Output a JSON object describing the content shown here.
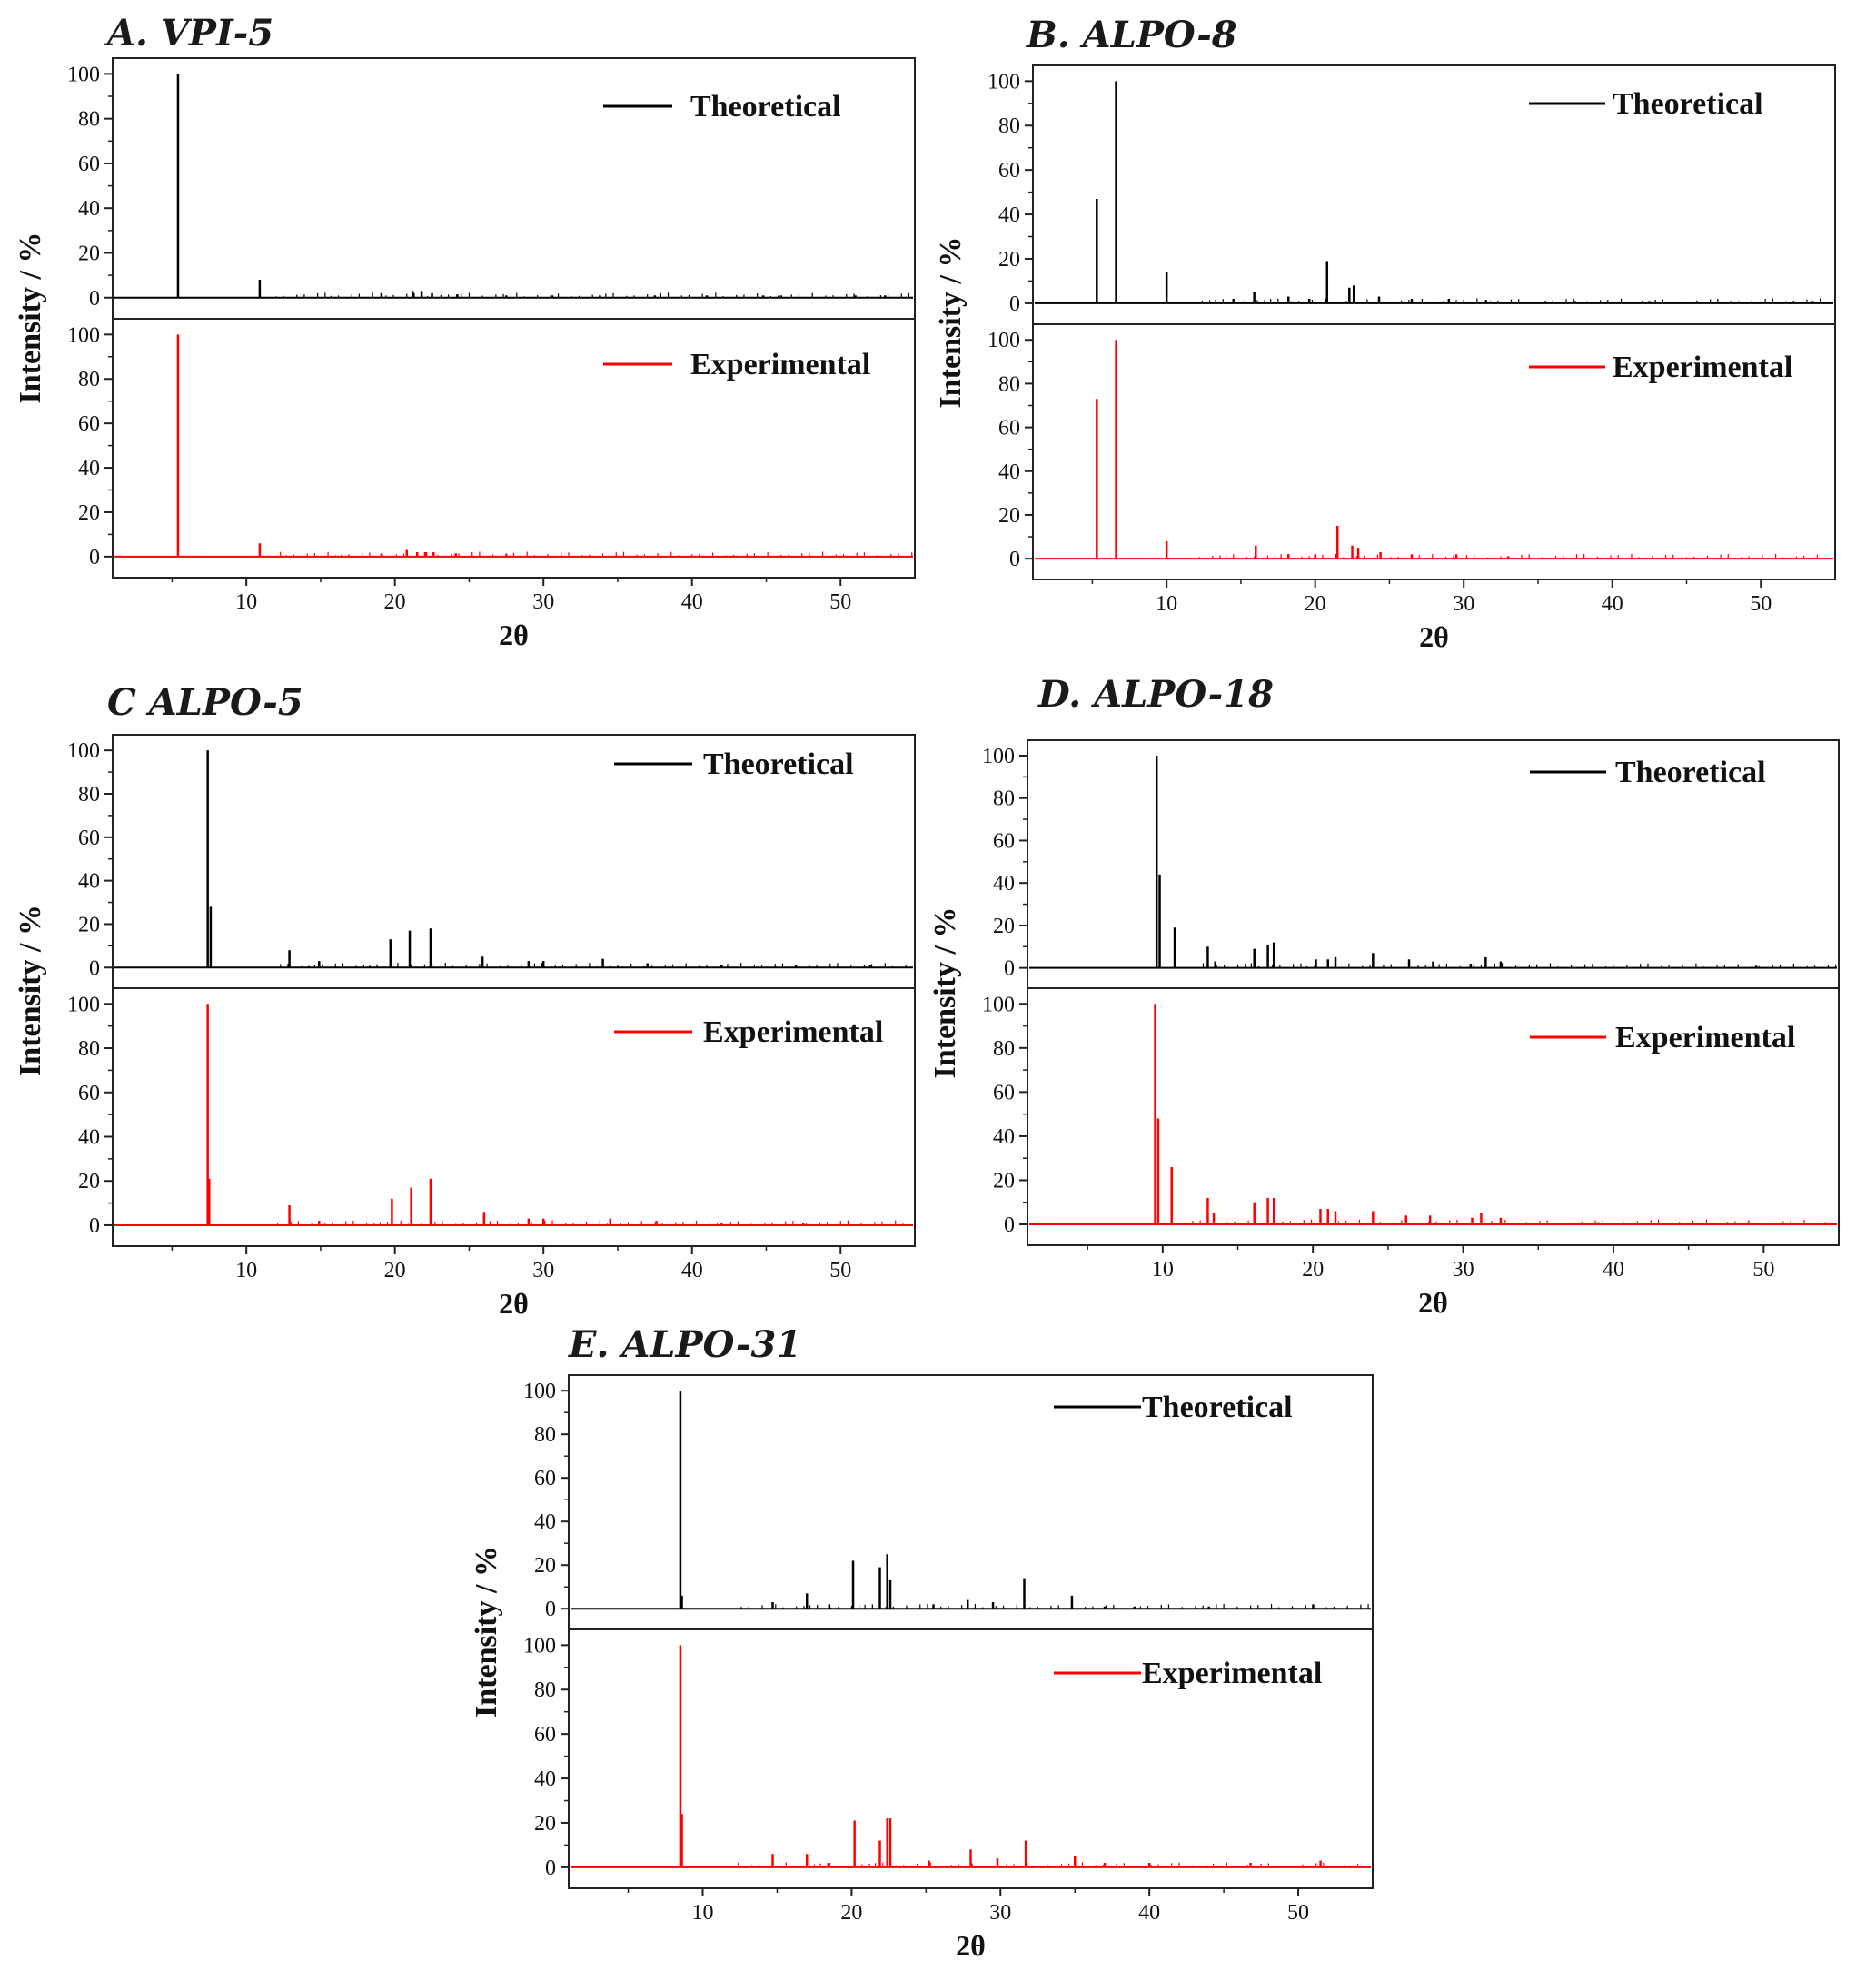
{
  "chart_data": [
    {
      "panel_title": "A. VPI-5",
      "type": "line",
      "xlabel": "2θ",
      "ylabel": "Intensity / %",
      "xlim": [
        1,
        55
      ],
      "ylim": [
        -7,
        103
      ],
      "x_ticks": [
        10,
        20,
        30,
        40,
        50
      ],
      "y_ticks": [
        0,
        20,
        40,
        60,
        80,
        100
      ],
      "series": [
        {
          "name": "Theoretical",
          "color": "#000000",
          "x": [
            5.4,
            10.9,
            19.1,
            21.2,
            21.8,
            22.5,
            24.2,
            27.5,
            30.6,
            33.8,
            37.5,
            41.0,
            44.8,
            46.0,
            51.0,
            53.0
          ],
          "values": [
            100,
            8,
            2,
            3,
            3,
            2,
            1.5,
            1,
            1,
            1,
            1,
            1,
            1,
            1,
            1,
            1
          ]
        },
        {
          "name": "Experimental",
          "color": "#ff0000",
          "x": [
            5.4,
            10.9,
            19.1,
            20.8,
            21.5,
            22.1,
            22.6,
            24.1,
            27.5
          ],
          "values": [
            100,
            6,
            1.5,
            3,
            2,
            2,
            2,
            1.5,
            1
          ]
        }
      ]
    },
    {
      "panel_title": "B. ALPO-8",
      "type": "line",
      "xlabel": "2θ",
      "ylabel": "Intensity / %",
      "xlim": [
        1,
        55
      ],
      "ylim": [
        -7,
        103
      ],
      "x_ticks": [
        10,
        20,
        30,
        40,
        50
      ],
      "y_ticks": [
        0,
        20,
        40,
        60,
        80,
        100
      ],
      "series": [
        {
          "name": "Theoretical",
          "color": "#000000",
          "x": [
            5.3,
            6.6,
            10.0,
            14.5,
            15.9,
            18.2,
            19.6,
            20.8,
            22.3,
            22.6,
            24.3,
            26.5,
            29.0,
            31.5,
            37.5,
            42.5,
            48.0,
            53.5
          ],
          "values": [
            47,
            100,
            14,
            2,
            5,
            3,
            2,
            19,
            7,
            8,
            3,
            2,
            2,
            1.5,
            1,
            1,
            1,
            1
          ]
        },
        {
          "name": "Experimental",
          "color": "#ff0000",
          "x": [
            5.3,
            6.6,
            10.0,
            16.0,
            18.2,
            20.0,
            21.5,
            22.5,
            22.9,
            24.4,
            26.5,
            29.5,
            33.0
          ],
          "values": [
            73,
            100,
            8,
            6,
            2,
            2,
            15,
            6,
            5,
            3,
            2,
            2,
            1
          ]
        }
      ]
    },
    {
      "panel_title": "C ALPO-5",
      "type": "line",
      "xlabel": "2θ",
      "ylabel": "Intensity / %",
      "xlim": [
        1,
        55
      ],
      "ylim": [
        -7,
        103
      ],
      "x_ticks": [
        10,
        20,
        30,
        40,
        50
      ],
      "y_ticks": [
        0,
        20,
        40,
        60,
        80,
        100
      ],
      "series": [
        {
          "name": "Theoretical",
          "color": "#000000",
          "x": [
            7.4,
            7.6,
            12.9,
            14.9,
            19.7,
            21.0,
            22.4,
            25.9,
            29.0,
            30.0,
            34.0,
            37.0,
            42.0,
            47.0,
            52.0
          ],
          "values": [
            100,
            28,
            8,
            3,
            13,
            17,
            18,
            5,
            3,
            3,
            4,
            2,
            1,
            1,
            1
          ]
        },
        {
          "name": "Experimental",
          "color": "#ff0000",
          "x": [
            7.4,
            7.5,
            12.9,
            14.9,
            19.8,
            21.1,
            22.4,
            26.0,
            29.0,
            30.0,
            34.5,
            37.6,
            42.0,
            47.5
          ],
          "values": [
            100,
            21,
            9,
            2,
            12,
            17,
            21,
            6,
            3,
            3,
            3,
            2,
            1,
            1
          ]
        }
      ]
    },
    {
      "panel_title": "D. ALPO-18",
      "type": "line",
      "xlabel": "2θ",
      "ylabel": "Intensity / %",
      "xlim": [
        1,
        55
      ],
      "ylim": [
        -7,
        103
      ],
      "x_ticks": [
        10,
        20,
        30,
        40,
        50
      ],
      "y_ticks": [
        0,
        20,
        40,
        60,
        80,
        100
      ],
      "series": [
        {
          "name": "Theoretical",
          "color": "#000000",
          "x": [
            9.6,
            9.8,
            10.8,
            13.0,
            13.5,
            16.1,
            17.0,
            17.4,
            20.2,
            21.0,
            21.5,
            24.0,
            26.4,
            28.0,
            30.5,
            31.5,
            32.5,
            49.5
          ],
          "values": [
            100,
            44,
            19,
            10,
            3,
            9,
            11,
            12,
            4,
            4,
            5,
            7,
            4,
            3,
            2,
            5,
            3,
            1
          ]
        },
        {
          "name": "Experimental",
          "color": "#ff0000",
          "x": [
            9.5,
            9.7,
            10.6,
            13.0,
            13.4,
            16.1,
            17.0,
            17.4,
            20.5,
            21.0,
            21.5,
            24.0,
            26.2,
            27.8,
            30.6,
            31.2,
            32.5,
            39.0,
            49.0
          ],
          "values": [
            100,
            48,
            26,
            12,
            5,
            10,
            12,
            12,
            7,
            7,
            6,
            6,
            4,
            4,
            3,
            5,
            3,
            1,
            1
          ]
        }
      ]
    },
    {
      "panel_title": "E. ALPO-31",
      "type": "line",
      "xlabel": "2θ",
      "ylabel": "Intensity / %",
      "xlim": [
        1,
        55
      ],
      "ylim": [
        -7,
        103
      ],
      "x_ticks": [
        10,
        20,
        30,
        40,
        50
      ],
      "y_ticks": [
        0,
        20,
        40,
        60,
        80,
        100
      ],
      "series": [
        {
          "name": "Theoretical",
          "color": "#000000",
          "x": [
            8.5,
            8.6,
            14.7,
            17.0,
            18.5,
            20.1,
            21.9,
            22.4,
            22.6,
            25.5,
            27.8,
            29.5,
            31.6,
            34.8,
            37.0,
            39.0,
            44.0,
            51.0
          ],
          "values": [
            100,
            6,
            3,
            7,
            2,
            22,
            19,
            25,
            13,
            2,
            4,
            3,
            14,
            6,
            1,
            1,
            1,
            2
          ]
        },
        {
          "name": "Experimental",
          "color": "#ff0000",
          "x": [
            8.5,
            8.6,
            14.7,
            17.0,
            18.5,
            20.2,
            21.9,
            22.4,
            22.6,
            25.2,
            28.0,
            29.8,
            31.7,
            35.0,
            37.0,
            40.0,
            46.8,
            51.5
          ],
          "values": [
            100,
            24,
            6,
            6,
            2,
            21,
            12,
            22,
            22,
            3,
            8,
            4,
            12,
            5,
            2,
            2,
            2,
            3
          ]
        }
      ]
    }
  ]
}
